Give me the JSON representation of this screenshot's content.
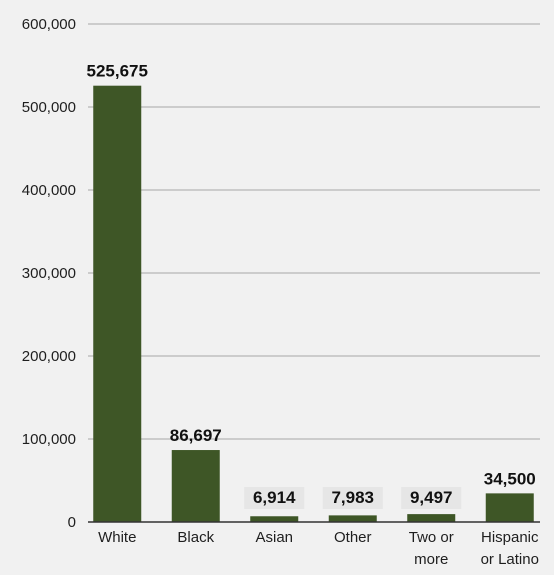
{
  "chart_data": {
    "type": "bar",
    "title": "",
    "xlabel": "",
    "ylabel": "",
    "categories": [
      "White",
      "Black",
      "Asian",
      "Other",
      "Two or more",
      "Hispanic or Latino"
    ],
    "category_lines": [
      [
        "White"
      ],
      [
        "Black"
      ],
      [
        "Asian"
      ],
      [
        "Other"
      ],
      [
        "Two or",
        "more"
      ],
      [
        "Hispanic",
        "or Latino"
      ]
    ],
    "values": [
      525675,
      86697,
      6914,
      7983,
      9497,
      34500
    ],
    "data_labels": [
      "525,675",
      "86,697",
      "6,914",
      "7,983",
      "9,497",
      "34,500"
    ],
    "ylim": [
      0,
      600000
    ],
    "yticks": [
      0,
      100000,
      200000,
      300000,
      400000,
      500000,
      600000
    ],
    "ytick_labels": [
      "0",
      "100,000",
      "200,000",
      "300,000",
      "400,000",
      "500,000",
      "600,000"
    ],
    "grid": true,
    "legend": "none",
    "colors": {
      "bar": "#3e5626",
      "background": "#f1f1f1",
      "label_box": "#e6e6e6",
      "grid": "#a6a6a6",
      "axis": "#333333"
    }
  }
}
